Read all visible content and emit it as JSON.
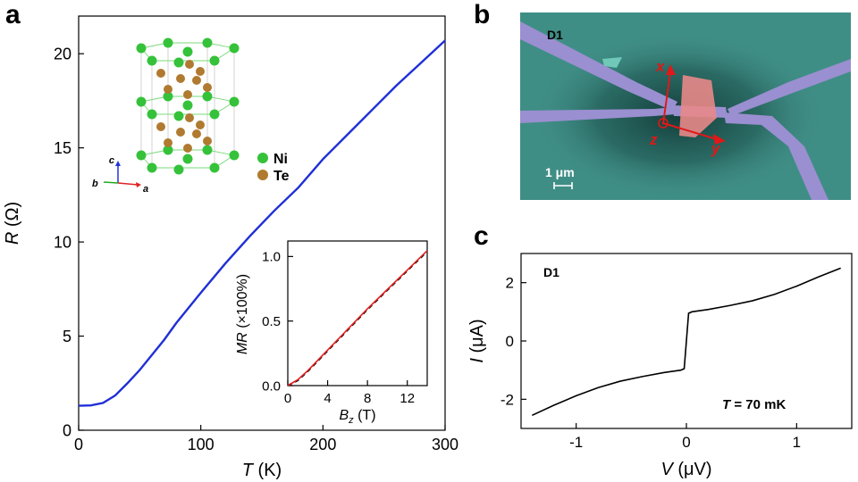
{
  "panels": {
    "a": "a",
    "b": "b",
    "c": "c"
  },
  "chart_data": [
    {
      "panel": "a",
      "type": "line",
      "xlabel_sym": "T",
      "xlabel_unit": " (K)",
      "ylabel_sym": "R",
      "ylabel_unit": " (Ω)",
      "xlim": [
        0,
        300
      ],
      "ylim": [
        0,
        22
      ],
      "xticks": [
        0,
        100,
        200,
        300
      ],
      "yticks": [
        0,
        5,
        10,
        15,
        20
      ],
      "color": "#1f2fd6",
      "x": [
        0,
        10,
        20,
        30,
        40,
        50,
        60,
        70,
        80,
        90,
        100,
        120,
        140,
        160,
        180,
        200,
        220,
        240,
        260,
        280,
        300
      ],
      "y": [
        1.3,
        1.32,
        1.45,
        1.85,
        2.5,
        3.2,
        4.0,
        4.8,
        5.7,
        6.5,
        7.3,
        8.85,
        10.3,
        11.65,
        12.9,
        14.4,
        15.7,
        17.0,
        18.3,
        19.5,
        20.7
      ]
    },
    {
      "panel": "a-inset",
      "type": "line",
      "xlabel_sym": "B",
      "xlabel_sub": "z",
      "xlabel_unit": " (T)",
      "ylabel_sym": "MR",
      "ylabel_unit": " (×100%)",
      "xlim": [
        0,
        14
      ],
      "ylim": [
        0,
        1.12
      ],
      "xticks": [
        0,
        4,
        8,
        12
      ],
      "yticks": [
        "0.0",
        "0.5",
        "1.0"
      ],
      "series": [
        {
          "style": "dashed",
          "color": "#000000",
          "x": [
            0,
            1,
            2,
            4,
            6,
            8,
            10,
            12,
            14
          ],
          "y": [
            0,
            0.04,
            0.11,
            0.27,
            0.43,
            0.59,
            0.74,
            0.89,
            1.04
          ]
        },
        {
          "style": "solid",
          "color": "#e02020",
          "x": [
            0,
            1,
            2,
            4,
            6,
            8,
            10,
            12,
            14
          ],
          "y": [
            0,
            0.045,
            0.115,
            0.275,
            0.435,
            0.595,
            0.745,
            0.895,
            1.045
          ]
        }
      ]
    },
    {
      "panel": "c",
      "type": "line",
      "label": "D1",
      "annotation_sym": "T",
      "annotation_rest": " = 70 mK",
      "xlabel_sym": "V",
      "xlabel_unit": " (μV)",
      "ylabel_sym": "I",
      "ylabel_unit": " (μA)",
      "xlim": [
        -1.5,
        1.5
      ],
      "ylim": [
        -3,
        3
      ],
      "xticks": [
        -1,
        0,
        1
      ],
      "yticks": [
        -2,
        0,
        2
      ],
      "color": "#000000",
      "x": [
        -1.4,
        -1.2,
        -1.0,
        -0.8,
        -0.6,
        -0.4,
        -0.2,
        -0.05,
        -0.02,
        0.0,
        0.02,
        0.05,
        0.2,
        0.4,
        0.6,
        0.8,
        1.0,
        1.2,
        1.4
      ],
      "y": [
        -2.55,
        -2.2,
        -1.88,
        -1.6,
        -1.38,
        -1.22,
        -1.08,
        -1.0,
        -0.95,
        0.0,
        0.95,
        1.0,
        1.08,
        1.22,
        1.38,
        1.6,
        1.88,
        2.2,
        2.5
      ]
    }
  ],
  "crystal": {
    "legend": [
      {
        "label": "Ni",
        "color": "#35c23a"
      },
      {
        "label": "Te",
        "color": "#b07a30"
      }
    ],
    "axes": {
      "a": "a",
      "b": "b",
      "c": "c"
    }
  },
  "sem": {
    "device": "D1",
    "scalebar": "1 μm",
    "axes": {
      "x": "x",
      "y": "y",
      "z": "z"
    },
    "colors": {
      "substrate": "#3f8e86",
      "electrode": "#9a8fd0",
      "flake": "#e88888",
      "axis": "#e01818"
    }
  }
}
